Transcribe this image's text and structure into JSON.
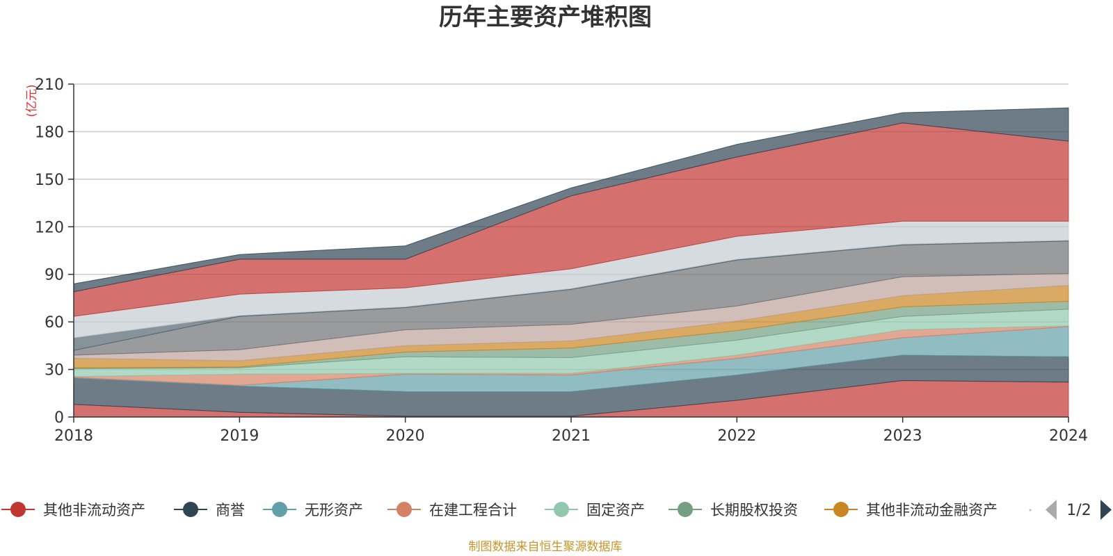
{
  "chart_data": {
    "type": "area",
    "title": "历年主要资产堆积图",
    "unit_label": "(亿元)",
    "x": [
      "2018",
      "2019",
      "2020",
      "2021",
      "2022",
      "2023",
      "2024"
    ],
    "ylim": [
      0,
      210
    ],
    "yticks": [
      0,
      30,
      60,
      90,
      120,
      150,
      180,
      210
    ],
    "grid": true,
    "stacked": true,
    "series": [
      {
        "name": "其他非流动资产",
        "color": "#c23531",
        "values": [
          8.0,
          3.0,
          0.5,
          0.5,
          10.5,
          23.0,
          22.0
        ]
      },
      {
        "name": "商誉",
        "color": "#2f4554",
        "values": [
          16.5,
          16.5,
          15.5,
          15.5,
          16.0,
          16.0,
          16.0
        ]
      },
      {
        "name": "无形资产",
        "color": "#61a0a8",
        "values": [
          0.5,
          0.5,
          11.0,
          10.5,
          10.5,
          11.0,
          19.0
        ]
      },
      {
        "name": "在建工程合计",
        "color": "#d48265",
        "values": [
          0.5,
          7.0,
          0.5,
          1.0,
          2.0,
          5.0,
          0.5
        ]
      },
      {
        "name": "固定资产",
        "color": "#91c7ae",
        "values": [
          5.0,
          4.0,
          10.5,
          10.0,
          9.5,
          8.5,
          10.5
        ]
      },
      {
        "name": "长期股权投资",
        "color": "#749f83",
        "values": [
          0.5,
          0.5,
          3.0,
          6.0,
          6.0,
          6.0,
          5.0
        ]
      },
      {
        "name": "其他非流动金融资产",
        "color": "#ca8622",
        "values": [
          6.0,
          4.0,
          4.0,
          4.5,
          6.0,
          7.0,
          10.0
        ]
      },
      {
        "name": "",
        "color": "#bda29a",
        "values": [
          2.0,
          7.0,
          10.0,
          10.5,
          9.5,
          12.0,
          7.5
        ]
      },
      {
        "name": "",
        "color": "#6e7074",
        "values": [
          3.0,
          21.0,
          14.0,
          22.0,
          29.0,
          20.0,
          20.5
        ]
      },
      {
        "name": "",
        "color": "#546570",
        "values": [
          8.0,
          0.5,
          0.5,
          0.5,
          0.5,
          0.5,
          0.5
        ]
      },
      {
        "name": "",
        "color": "#c4ccd3",
        "values": [
          13.5,
          13.5,
          12.0,
          12.5,
          14.5,
          14.5,
          12.0
        ]
      },
      {
        "name": "",
        "color": "#c23531",
        "values": [
          15.5,
          22.0,
          18.0,
          46.0,
          50.0,
          62.0,
          50.5
        ]
      },
      {
        "name": "",
        "color": "#2f4554",
        "values": [
          5.0,
          3.0,
          8.5,
          5.0,
          8.0,
          6.5,
          21.0
        ]
      }
    ],
    "legend": {
      "position": "bottom",
      "page": "1/2",
      "items": [
        "其他非流动资产",
        "商誉",
        "无形资产",
        "在建工程合计",
        "固定资产",
        "长期股权投资",
        "其他非流动金融资产"
      ]
    },
    "source": "制图数据来自恒生聚源数据库"
  }
}
